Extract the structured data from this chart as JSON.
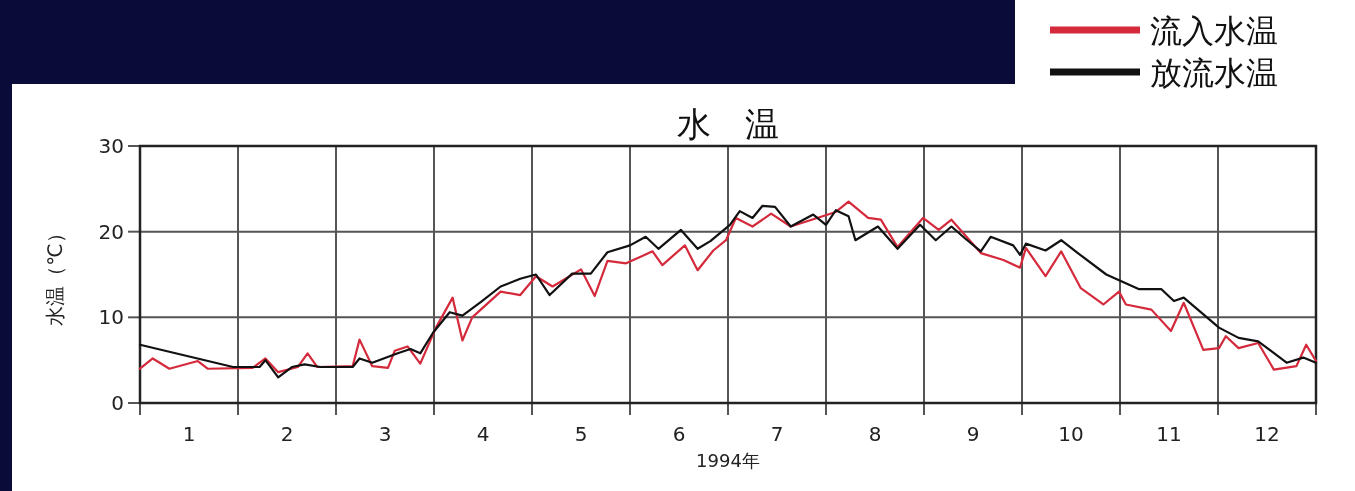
{
  "chart_data": {
    "type": "line",
    "title": "水　温",
    "xlabel": "1994年",
    "ylabel": "水温（℃）",
    "xlim": [
      0.5,
      12.5
    ],
    "ylim": [
      0,
      30
    ],
    "yticks": [
      0,
      10,
      20,
      30
    ],
    "xticks": [
      {
        "value": 0.5,
        "label": null
      },
      1,
      {
        "value": 1.5,
        "label": null
      },
      2,
      {
        "value": 2.5,
        "label": null
      },
      3,
      {
        "value": 3.5,
        "label": null
      },
      4,
      {
        "value": 4.5,
        "label": null
      },
      5,
      {
        "value": 5.5,
        "label": null
      },
      6,
      {
        "value": 6.5,
        "label": null
      },
      7,
      {
        "value": 7.5,
        "label": null
      },
      8,
      {
        "value": 8.5,
        "label": null
      },
      9,
      {
        "value": 9.5,
        "label": null
      },
      10,
      {
        "value": 10.5,
        "label": null
      },
      11,
      {
        "value": 11.5,
        "label": null
      },
      12,
      {
        "value": 12.5,
        "label": null
      }
    ],
    "grid": true,
    "legend": "top right",
    "marker": "none",
    "line_style": "solid",
    "series": [
      {
        "name": "流入水温",
        "color": "#d42a3c",
        "x": [
          0.5,
          0.63,
          0.8,
          1.09,
          1.19,
          1.65,
          1.78,
          1.91,
          2.11,
          2.21,
          2.31,
          2.67,
          2.74,
          2.87,
          3.03,
          3.1,
          3.23,
          3.36,
          3.52,
          3.69,
          3.79,
          3.89,
          4.18,
          4.38,
          4.54,
          4.71,
          5.0,
          5.14,
          5.27,
          5.46,
          5.73,
          5.83,
          6.06,
          6.19,
          6.35,
          6.48,
          6.58,
          6.75,
          6.94,
          7.14,
          7.6,
          7.73,
          7.93,
          8.06,
          8.23,
          8.49,
          8.65,
          8.78,
          9.08,
          9.31,
          9.48,
          9.54,
          9.74,
          9.9,
          10.1,
          10.33,
          10.49,
          10.56,
          10.82,
          11.02,
          11.15,
          11.35,
          11.51,
          11.58,
          11.71,
          11.91,
          12.07,
          12.3,
          12.4,
          12.5
        ],
        "values": [
          4.0,
          5.2,
          4.0,
          4.9,
          4.0,
          4.1,
          5.2,
          3.6,
          4.2,
          5.8,
          4.2,
          4.3,
          7.4,
          4.3,
          4.1,
          6.1,
          6.6,
          4.6,
          8.8,
          12.3,
          7.3,
          10.0,
          13.0,
          12.6,
          14.8,
          13.6,
          15.6,
          12.5,
          16.6,
          16.3,
          17.7,
          16.1,
          18.4,
          15.5,
          17.8,
          19.0,
          21.6,
          20.6,
          22.1,
          20.6,
          22.3,
          23.5,
          21.6,
          21.4,
          18.2,
          21.6,
          20.2,
          21.4,
          17.5,
          16.7,
          15.8,
          18.1,
          14.8,
          17.7,
          13.4,
          11.5,
          13.0,
          11.5,
          10.9,
          8.4,
          11.7,
          6.2,
          6.4,
          7.8,
          6.4,
          7.0,
          3.9,
          4.3,
          6.8,
          4.9
        ]
      },
      {
        "name": "放流水温",
        "color": "#111111",
        "x": [
          0.5,
          1.45,
          1.72,
          1.78,
          1.91,
          2.05,
          2.18,
          2.34,
          2.67,
          2.74,
          2.87,
          3.13,
          3.26,
          3.36,
          3.49,
          3.66,
          3.79,
          3.98,
          4.18,
          4.38,
          4.54,
          4.68,
          4.91,
          5.1,
          5.27,
          5.5,
          5.66,
          5.79,
          6.02,
          6.19,
          6.32,
          6.52,
          6.62,
          6.75,
          6.85,
          6.98,
          7.14,
          7.37,
          7.5,
          7.6,
          7.73,
          7.8,
          8.03,
          8.23,
          8.46,
          8.62,
          8.78,
          8.92,
          9.08,
          9.18,
          9.41,
          9.48,
          9.54,
          9.74,
          9.9,
          10.07,
          10.36,
          10.69,
          10.92,
          11.05,
          11.15,
          11.51,
          11.71,
          11.91,
          12.2,
          12.37,
          12.5
        ],
        "values": [
          6.8,
          4.2,
          4.2,
          5.0,
          3.0,
          4.2,
          4.5,
          4.2,
          4.2,
          5.2,
          4.7,
          5.8,
          6.3,
          5.8,
          8.2,
          10.6,
          10.2,
          11.8,
          13.6,
          14.5,
          15.0,
          12.6,
          15.1,
          15.1,
          17.6,
          18.4,
          19.4,
          18.0,
          20.2,
          18.0,
          18.9,
          20.8,
          22.4,
          21.6,
          23.0,
          22.9,
          20.6,
          22.0,
          20.8,
          22.5,
          21.8,
          19.0,
          20.6,
          18.0,
          20.8,
          19.0,
          20.6,
          19.2,
          17.7,
          19.4,
          18.4,
          17.3,
          18.6,
          17.8,
          19.0,
          17.5,
          15.0,
          13.3,
          13.3,
          11.9,
          12.3,
          8.8,
          7.6,
          7.2,
          4.7,
          5.3,
          4.7
        ]
      }
    ]
  }
}
